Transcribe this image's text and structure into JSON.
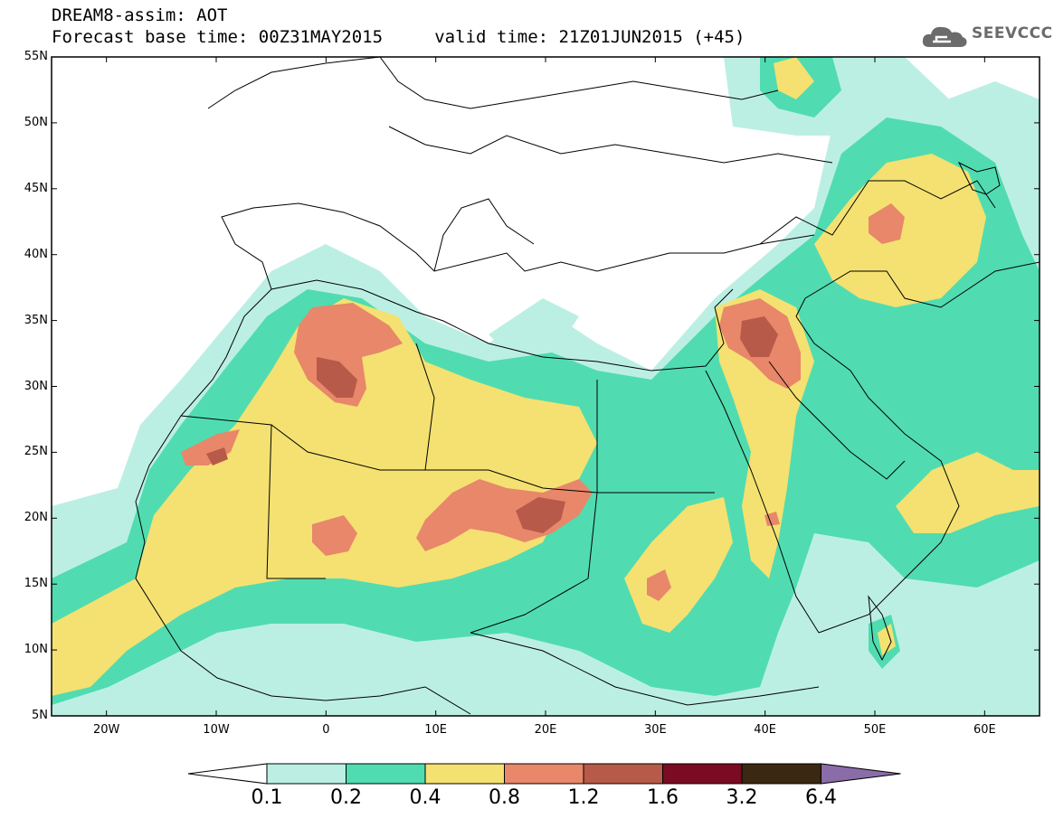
{
  "title": {
    "line1": "DREAM8-assim: AOT",
    "line2": "Forecast base time: 00Z31MAY2015     valid time: 21Z01JUN2015 (+45)"
  },
  "logo": {
    "text": "SEEVCCC",
    "icon": "cloud-icon"
  },
  "map": {
    "lon_range": [
      -25,
      65
    ],
    "lat_range": [
      5,
      55
    ],
    "lat_ticks": [
      "5N",
      "10N",
      "15N",
      "20N",
      "25N",
      "30N",
      "35N",
      "40N",
      "45N",
      "50N",
      "55N"
    ],
    "lon_ticks": [
      "20W",
      "10W",
      "0",
      "10E",
      "20E",
      "30E",
      "40E",
      "50E",
      "60E"
    ]
  },
  "colorbar": {
    "labels": [
      "0.1",
      "0.2",
      "0.4",
      "0.8",
      "1.2",
      "1.6",
      "3.2",
      "6.4"
    ],
    "colors": {
      "lt_0.1": "#ffffff",
      "0.1-0.2": "#bcefe3",
      "0.2-0.4": "#50dcb0",
      "0.4-0.8": "#f4e171",
      "0.8-1.2": "#e8876a",
      "1.2-1.6": "#b75a49",
      "1.6-3.2": "#7a0b22",
      "3.2-6.4": "#3b2813",
      "gt_6.4": "#8a6da8"
    }
  }
}
